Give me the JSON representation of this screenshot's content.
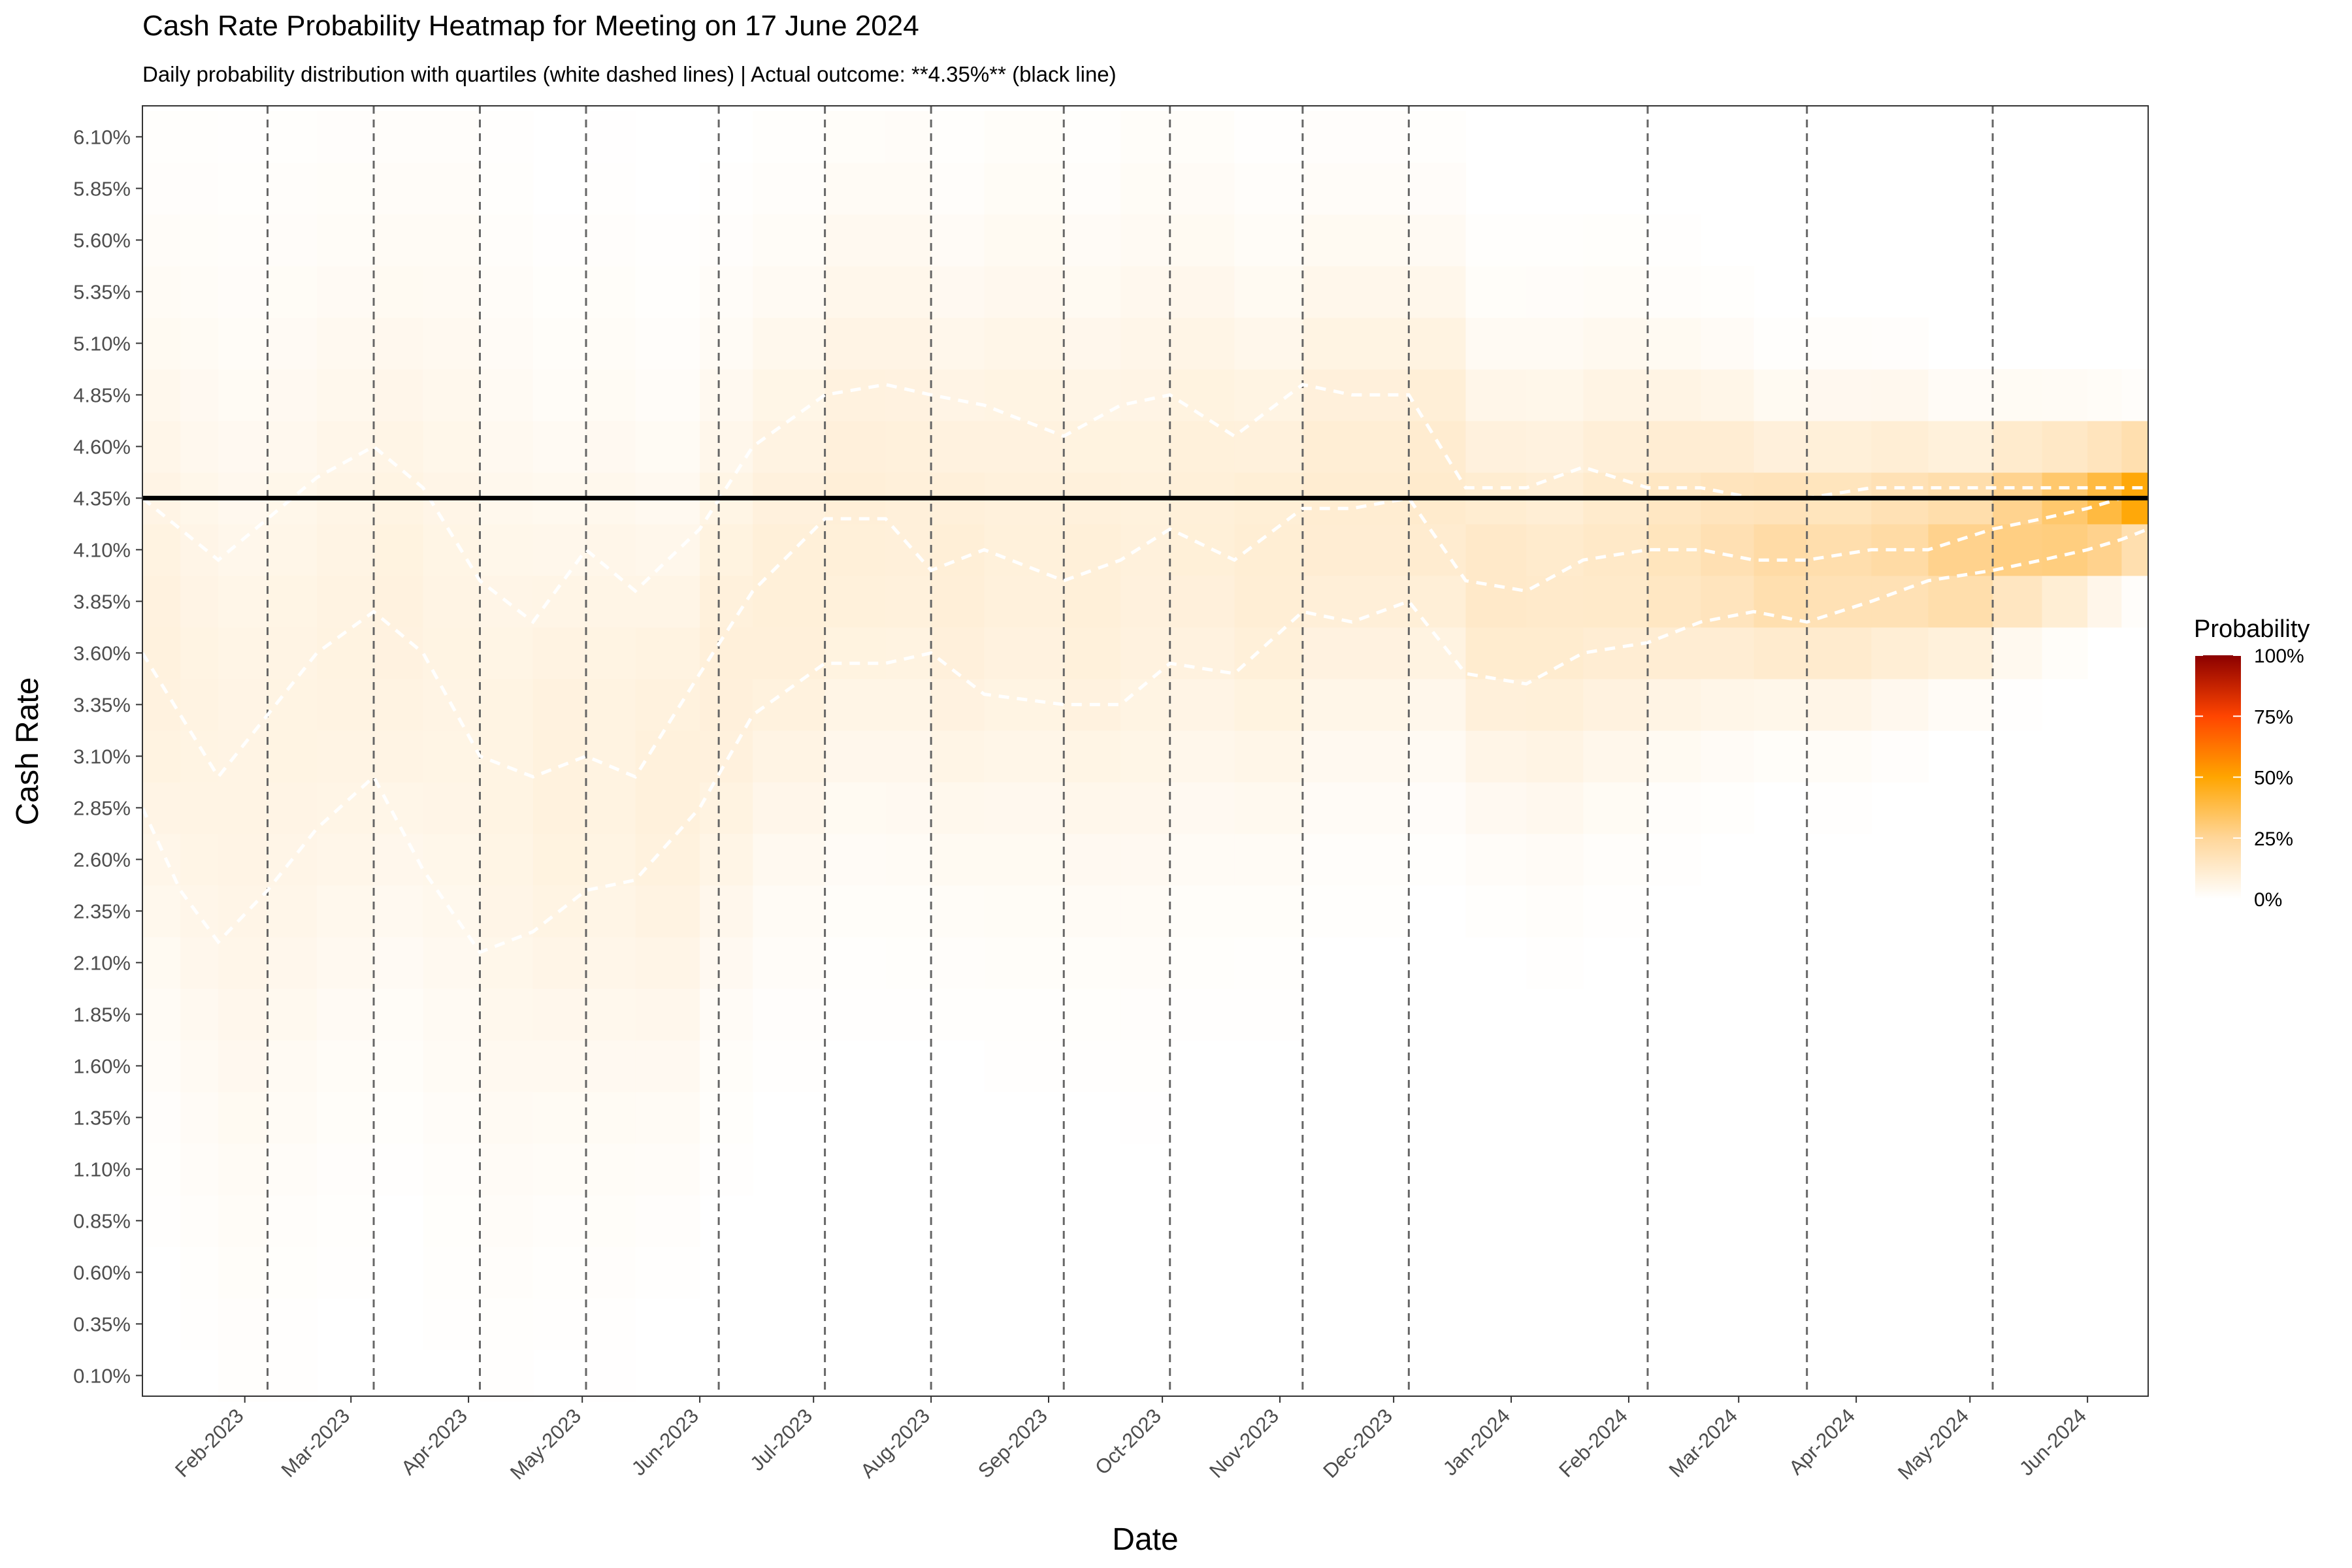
{
  "chart_data": {
    "type": "heatmap",
    "title": "Cash Rate Probability Heatmap for Meeting on 17 June 2024",
    "subtitle": "Daily probability distribution with quartiles (white dashed lines) | Actual outcome: **4.35%** (black line)",
    "xlabel": "Date",
    "ylabel": "Cash Rate",
    "x_range": [
      "2023-01-05",
      "2024-06-17"
    ],
    "x_ticks": [
      {
        "date": "2023-02-01",
        "label": "Feb-2023"
      },
      {
        "date": "2023-03-01",
        "label": "Mar-2023"
      },
      {
        "date": "2023-04-01",
        "label": "Apr-2023"
      },
      {
        "date": "2023-05-01",
        "label": "May-2023"
      },
      {
        "date": "2023-06-01",
        "label": "Jun-2023"
      },
      {
        "date": "2023-07-01",
        "label": "Jul-2023"
      },
      {
        "date": "2023-08-01",
        "label": "Aug-2023"
      },
      {
        "date": "2023-09-01",
        "label": "Sep-2023"
      },
      {
        "date": "2023-10-01",
        "label": "Oct-2023"
      },
      {
        "date": "2023-11-01",
        "label": "Nov-2023"
      },
      {
        "date": "2023-12-01",
        "label": "Dec-2023"
      },
      {
        "date": "2024-01-01",
        "label": "Jan-2024"
      },
      {
        "date": "2024-02-01",
        "label": "Feb-2024"
      },
      {
        "date": "2024-03-01",
        "label": "Mar-2024"
      },
      {
        "date": "2024-04-01",
        "label": "Apr-2024"
      },
      {
        "date": "2024-05-01",
        "label": "May-2024"
      },
      {
        "date": "2024-06-01",
        "label": "Jun-2024"
      }
    ],
    "y_ticks": [
      {
        "value": 0.1,
        "label": "0.10%"
      },
      {
        "value": 0.35,
        "label": "0.35%"
      },
      {
        "value": 0.6,
        "label": "0.60%"
      },
      {
        "value": 0.85,
        "label": "0.85%"
      },
      {
        "value": 1.1,
        "label": "1.10%"
      },
      {
        "value": 1.35,
        "label": "1.35%"
      },
      {
        "value": 1.6,
        "label": "1.60%"
      },
      {
        "value": 1.85,
        "label": "1.85%"
      },
      {
        "value": 2.1,
        "label": "2.10%"
      },
      {
        "value": 2.35,
        "label": "2.35%"
      },
      {
        "value": 2.6,
        "label": "2.60%"
      },
      {
        "value": 2.85,
        "label": "2.85%"
      },
      {
        "value": 3.1,
        "label": "3.10%"
      },
      {
        "value": 3.35,
        "label": "3.35%"
      },
      {
        "value": 3.6,
        "label": "3.60%"
      },
      {
        "value": 3.85,
        "label": "3.85%"
      },
      {
        "value": 4.1,
        "label": "4.10%"
      },
      {
        "value": 4.35,
        "label": "4.35%"
      },
      {
        "value": 4.6,
        "label": "4.60%"
      },
      {
        "value": 4.85,
        "label": "4.85%"
      },
      {
        "value": 5.1,
        "label": "5.10%"
      },
      {
        "value": 5.35,
        "label": "5.35%"
      },
      {
        "value": 5.6,
        "label": "5.60%"
      },
      {
        "value": 5.85,
        "label": "5.85%"
      },
      {
        "value": 6.1,
        "label": "6.10%"
      }
    ],
    "ylim": [
      0.0,
      6.25
    ],
    "meeting_dates": [
      "2023-02-07",
      "2023-03-07",
      "2023-04-04",
      "2023-05-02",
      "2023-06-06",
      "2023-07-04",
      "2023-08-01",
      "2023-09-05",
      "2023-10-03",
      "2023-11-07",
      "2023-12-05",
      "2024-02-06",
      "2024-03-19",
      "2024-05-07"
    ],
    "actual_outcome": 4.35,
    "grid": false,
    "legend": {
      "title": "Probability",
      "placement": "right",
      "labels": [
        "100%",
        "75%",
        "50%",
        "25%",
        "0%"
      ],
      "stops": [
        0,
        0.25,
        0.5,
        0.75,
        1.0
      ],
      "colors": [
        "#ffffff",
        "#ffd699",
        "#ffa500",
        "#ff4500",
        "#8b0000"
      ]
    },
    "quartiles": {
      "dates": [
        "2023-01-05",
        "2023-01-15",
        "2023-01-25",
        "2023-02-07",
        "2023-02-20",
        "2023-03-07",
        "2023-03-20",
        "2023-04-04",
        "2023-04-18",
        "2023-05-02",
        "2023-05-15",
        "2023-06-01",
        "2023-06-15",
        "2023-07-04",
        "2023-07-20",
        "2023-08-01",
        "2023-08-15",
        "2023-09-05",
        "2023-09-20",
        "2023-10-03",
        "2023-10-20",
        "2023-11-07",
        "2023-11-20",
        "2023-12-05",
        "2023-12-20",
        "2024-01-05",
        "2024-01-20",
        "2024-02-06",
        "2024-02-20",
        "2024-03-05",
        "2024-03-19",
        "2024-04-05",
        "2024-04-20",
        "2024-05-07",
        "2024-05-20",
        "2024-06-01",
        "2024-06-10",
        "2024-06-17"
      ],
      "q1": [
        2.85,
        2.45,
        2.2,
        2.45,
        2.75,
        3.0,
        2.55,
        2.15,
        2.25,
        2.45,
        2.5,
        2.85,
        3.3,
        3.55,
        3.55,
        3.6,
        3.4,
        3.35,
        3.35,
        3.55,
        3.5,
        3.8,
        3.75,
        3.85,
        3.5,
        3.45,
        3.6,
        3.65,
        3.75,
        3.8,
        3.75,
        3.85,
        3.95,
        4.0,
        4.05,
        4.1,
        4.15,
        4.2
      ],
      "q2": [
        3.6,
        3.3,
        3.0,
        3.3,
        3.6,
        3.8,
        3.6,
        3.1,
        3.0,
        3.1,
        3.0,
        3.5,
        3.9,
        4.25,
        4.25,
        4.0,
        4.1,
        3.95,
        4.05,
        4.2,
        4.05,
        4.3,
        4.3,
        4.35,
        3.95,
        3.9,
        4.05,
        4.1,
        4.1,
        4.05,
        4.05,
        4.1,
        4.1,
        4.2,
        4.25,
        4.3,
        4.35,
        4.35
      ],
      "q3": [
        4.35,
        4.2,
        4.05,
        4.25,
        4.45,
        4.6,
        4.4,
        3.95,
        3.75,
        4.1,
        3.9,
        4.2,
        4.6,
        4.85,
        4.9,
        4.85,
        4.8,
        4.65,
        4.8,
        4.85,
        4.65,
        4.9,
        4.85,
        4.85,
        4.4,
        4.4,
        4.5,
        4.4,
        4.4,
        4.35,
        4.35,
        4.4,
        4.4,
        4.4,
        4.4,
        4.4,
        4.4,
        4.4
      ]
    }
  }
}
